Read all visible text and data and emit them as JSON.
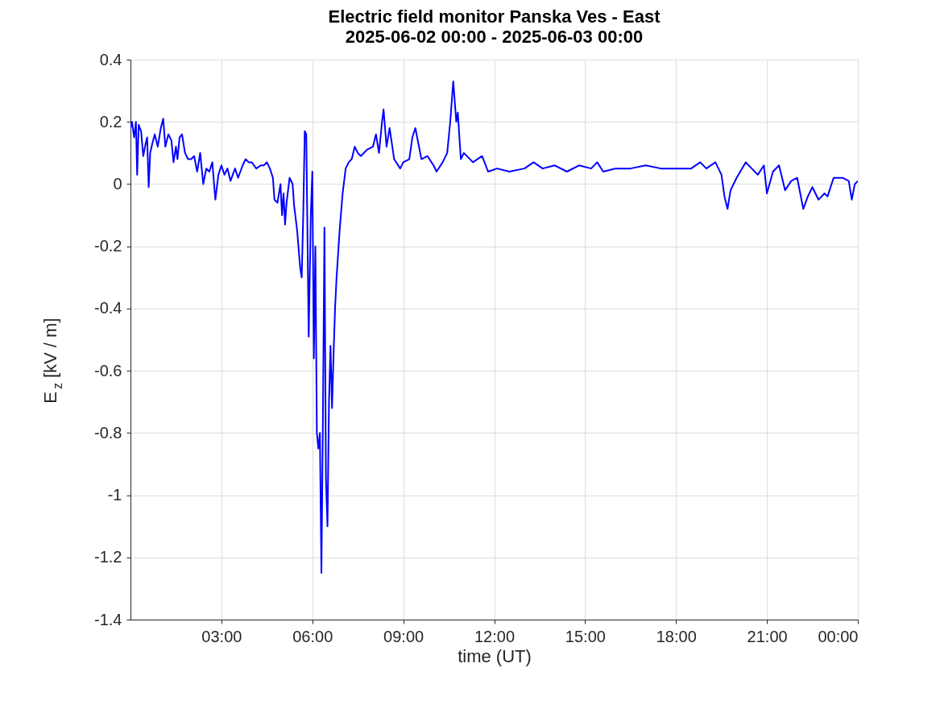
{
  "chart_data": {
    "type": "line",
    "title": "Electric field monitor Panska Ves - East",
    "subtitle": "2025-06-02 00:00 - 2025-06-03 00:00",
    "xlabel": "time (UT)",
    "ylabel": "E$_{z}$ [kV / m]",
    "xlim": [
      0,
      24
    ],
    "xticks": [
      {
        "value": 3,
        "label": "03:00"
      },
      {
        "value": 6,
        "label": "06:00"
      },
      {
        "value": 9,
        "label": "09:00"
      },
      {
        "value": 12,
        "label": "12:00"
      },
      {
        "value": 15,
        "label": "15:00"
      },
      {
        "value": 18,
        "label": "18:00"
      },
      {
        "value": 21,
        "label": "21:00"
      },
      {
        "value": 24,
        "label": "00:00"
      }
    ],
    "ylim": [
      -1.4,
      0.4
    ],
    "yticks": [
      -1.4,
      -1.2,
      -1,
      -0.8,
      -0.6,
      -0.4,
      -0.2,
      0,
      0.2,
      0.4
    ],
    "grid": true,
    "legend": false,
    "line_style": "solid",
    "marker": "none",
    "x": [
      0,
      0.05,
      0.12,
      0.18,
      0.22,
      0.27,
      0.35,
      0.42,
      0.5,
      0.55,
      0.6,
      0.65,
      0.72,
      0.8,
      0.9,
      1.0,
      1.08,
      1.15,
      1.25,
      1.35,
      1.42,
      1.5,
      1.55,
      1.62,
      1.7,
      1.8,
      1.9,
      2.0,
      2.1,
      2.2,
      2.3,
      2.4,
      2.5,
      2.6,
      2.7,
      2.8,
      2.9,
      3.0,
      3.1,
      3.2,
      3.3,
      3.45,
      3.55,
      3.7,
      3.8,
      3.9,
      4.0,
      4.15,
      4.3,
      4.4,
      4.5,
      4.6,
      4.7,
      4.75,
      4.85,
      4.95,
      5.0,
      5.05,
      5.1,
      5.15,
      5.2,
      5.25,
      5.35,
      5.4,
      5.5,
      5.6,
      5.65,
      5.7,
      5.75,
      5.8,
      5.88,
      5.95,
      6.0,
      6.05,
      6.1,
      6.15,
      6.2,
      6.25,
      6.3,
      6.35,
      6.4,
      6.45,
      6.5,
      6.55,
      6.6,
      6.65,
      6.7,
      6.75,
      6.8,
      6.9,
      7.0,
      7.1,
      7.2,
      7.3,
      7.4,
      7.5,
      7.6,
      7.8,
      8.0,
      8.1,
      8.2,
      8.3,
      8.35,
      8.45,
      8.55,
      8.7,
      8.9,
      9.0,
      9.2,
      9.3,
      9.4,
      9.5,
      9.6,
      9.8,
      10.0,
      10.1,
      10.3,
      10.45,
      10.55,
      10.65,
      10.75,
      10.8,
      10.9,
      11.0,
      11.3,
      11.6,
      11.8,
      12.1,
      12.5,
      13.0,
      13.3,
      13.6,
      14.0,
      14.4,
      14.8,
      15.2,
      15.4,
      15.6,
      16.0,
      16.5,
      17.0,
      17.5,
      18.0,
      18.5,
      18.8,
      19.0,
      19.3,
      19.5,
      19.6,
      19.7,
      19.8,
      20.0,
      20.3,
      20.5,
      20.7,
      20.9,
      21.0,
      21.2,
      21.4,
      21.6,
      21.8,
      22.0,
      22.2,
      22.35,
      22.5,
      22.7,
      22.9,
      23.0,
      23.2,
      23.5,
      23.7,
      23.8,
      23.9,
      24.0
    ],
    "series": [
      {
        "color": "#0000ff",
        "values": [
          0.18,
          0.2,
          0.15,
          0.2,
          0.03,
          0.19,
          0.17,
          0.09,
          0.13,
          0.15,
          -0.01,
          0.1,
          0.13,
          0.16,
          0.12,
          0.18,
          0.21,
          0.12,
          0.16,
          0.14,
          0.07,
          0.12,
          0.08,
          0.15,
          0.16,
          0.1,
          0.08,
          0.08,
          0.09,
          0.04,
          0.1,
          0.0,
          0.05,
          0.04,
          0.07,
          -0.05,
          0.03,
          0.06,
          0.03,
          0.05,
          0.01,
          0.05,
          0.02,
          0.06,
          0.08,
          0.07,
          0.07,
          0.05,
          0.06,
          0.06,
          0.07,
          0.05,
          0.02,
          -0.05,
          -0.06,
          0.0,
          -0.1,
          -0.03,
          -0.13,
          -0.06,
          -0.02,
          0.02,
          0.0,
          -0.07,
          -0.15,
          -0.27,
          -0.3,
          -0.1,
          0.17,
          0.16,
          -0.49,
          -0.1,
          0.04,
          -0.56,
          -0.2,
          -0.8,
          -0.85,
          -0.8,
          -1.25,
          -0.75,
          -0.14,
          -0.95,
          -1.1,
          -0.7,
          -0.52,
          -0.72,
          -0.55,
          -0.4,
          -0.3,
          -0.15,
          -0.03,
          0.05,
          0.07,
          0.08,
          0.12,
          0.1,
          0.09,
          0.11,
          0.12,
          0.16,
          0.1,
          0.2,
          0.24,
          0.12,
          0.18,
          0.08,
          0.05,
          0.07,
          0.08,
          0.15,
          0.18,
          0.13,
          0.08,
          0.09,
          0.06,
          0.04,
          0.07,
          0.1,
          0.2,
          0.33,
          0.2,
          0.23,
          0.08,
          0.1,
          0.07,
          0.09,
          0.04,
          0.05,
          0.04,
          0.05,
          0.07,
          0.05,
          0.06,
          0.04,
          0.06,
          0.05,
          0.07,
          0.04,
          0.05,
          0.05,
          0.06,
          0.05,
          0.05,
          0.05,
          0.07,
          0.05,
          0.07,
          0.03,
          -0.04,
          -0.08,
          -0.02,
          0.02,
          0.07,
          0.05,
          0.03,
          0.06,
          -0.03,
          0.04,
          0.06,
          -0.02,
          0.01,
          0.02,
          -0.08,
          -0.04,
          -0.01,
          -0.05,
          -0.03,
          -0.04,
          0.02,
          0.02,
          0.01,
          -0.05,
          0.0,
          0.01
        ]
      }
    ]
  }
}
